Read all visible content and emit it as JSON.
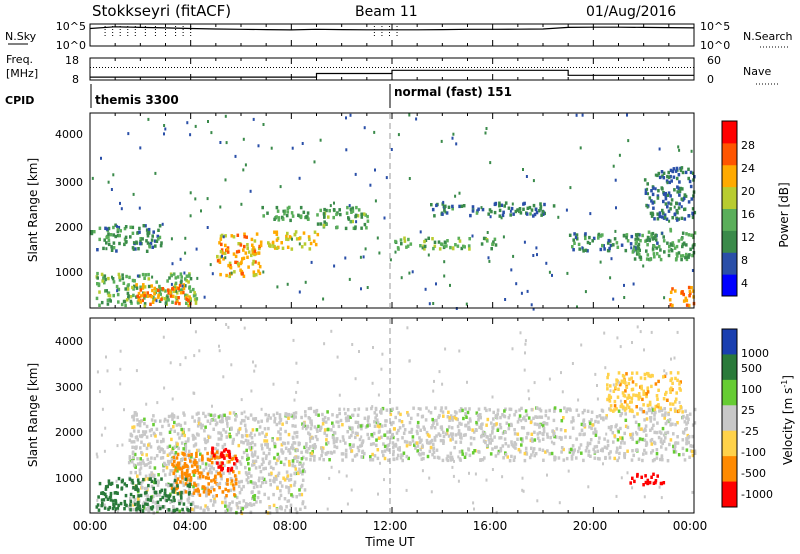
{
  "header": {
    "station": "Stokkseyri (fitACF)",
    "beam": "Beam 11",
    "date": "01/Aug/2016"
  },
  "summary_panels": {
    "nsky": {
      "label": "N.Sky",
      "ticks_left": [
        "10^5",
        "10^0"
      ],
      "ticks_right": [
        "10^5",
        "10^0"
      ],
      "right_label": "N.Search"
    },
    "freq": {
      "label_top": "Freq.",
      "label_bottom": "[MHz]",
      "ticks_left": [
        "18",
        "8"
      ],
      "ticks_right": [
        "60",
        "0"
      ],
      "right_label": "Nave"
    },
    "cpid": {
      "label": "CPID",
      "segments": [
        "themis 3300",
        "normal (fast) 151"
      ]
    }
  },
  "colorbars": {
    "power": {
      "label": "Power [dB]",
      "ticks": [
        "28",
        "24",
        "20",
        "16",
        "12",
        "8",
        "4"
      ]
    },
    "velocity": {
      "label_main": "Velocity [m s",
      "label_sup": "-1",
      "label_end": "]",
      "ticks": [
        "1000",
        "500",
        "100",
        "25",
        "-25",
        "-100",
        "-500",
        "-1000"
      ]
    }
  },
  "axes": {
    "ylabel": "Slant Range [km]",
    "xlabel": "Time UT",
    "yticks": [
      "4000",
      "3000",
      "2000",
      "1000"
    ],
    "xticks": [
      "00:00",
      "04:00",
      "08:00",
      "12:00",
      "16:00",
      "20:00",
      "00:00"
    ]
  },
  "chart_data": [
    {
      "type": "line",
      "panel": "N.Sky",
      "x_unit": "hours UT",
      "y_scale": "log",
      "ylim": [
        1,
        100000
      ],
      "series": [],
      "x": [
        0,
        1,
        2,
        3,
        4,
        5,
        6,
        7,
        8,
        9,
        10,
        11,
        12,
        13,
        14,
        15,
        16,
        17,
        18,
        19,
        20,
        21,
        22,
        23,
        24
      ],
      "values": [
        20000,
        60000,
        40000,
        30000,
        20000,
        15000,
        12000,
        10000,
        8000,
        12000,
        10000,
        9000,
        9000,
        9000,
        10000,
        12000,
        12000,
        13000,
        15000,
        40000,
        45000,
        45000,
        40000,
        35000,
        30000
      ]
    },
    {
      "type": "line",
      "panel": "Freq / Nave",
      "x_unit": "hours UT",
      "freq_mhz": {
        "x": [
          0,
          9,
          9,
          12,
          12,
          19,
          19,
          24
        ],
        "y": [
          8.5,
          8.5,
          10.5,
          10.5,
          12.3,
          12.3,
          9.5,
          9.5
        ]
      },
      "nave_dotted": {
        "x": [
          0,
          24
        ],
        "y": [
          35,
          35
        ]
      }
    },
    {
      "type": "heatmap",
      "panel": "Power",
      "xlabel": "Time UT",
      "ylabel": "Slant Range [km]",
      "xlim": [
        0,
        24
      ],
      "ylim": [
        180,
        4600
      ],
      "clim": [
        0,
        30
      ],
      "color_unit": "dB",
      "regions": [
        {
          "t0": 0.0,
          "t1": 2.8,
          "r0": 1500,
          "r1": 2100,
          "level": 10
        },
        {
          "t0": 0.2,
          "t1": 4.2,
          "r0": 250,
          "r1": 1000,
          "level": 14
        },
        {
          "t0": 1.8,
          "t1": 4.0,
          "r0": 300,
          "r1": 750,
          "level": 24
        },
        {
          "t0": 5.0,
          "t1": 6.8,
          "r0": 900,
          "r1": 1900,
          "level": 22
        },
        {
          "t0": 7.0,
          "t1": 9.0,
          "r0": 1550,
          "r1": 1950,
          "level": 20
        },
        {
          "t0": 6.8,
          "t1": 9.0,
          "r0": 2200,
          "r1": 2500,
          "level": 12
        },
        {
          "t0": 9.0,
          "t1": 11.0,
          "r0": 2000,
          "r1": 2500,
          "level": 13
        },
        {
          "t0": 12.0,
          "t1": 16.2,
          "r0": 1550,
          "r1": 1800,
          "level": 14
        },
        {
          "t0": 13.5,
          "t1": 18.5,
          "r0": 2300,
          "r1": 2600,
          "level": 9
        },
        {
          "t0": 19.0,
          "t1": 22.5,
          "r0": 1500,
          "r1": 1900,
          "level": 10
        },
        {
          "t0": 21.5,
          "t1": 24.0,
          "r0": 1300,
          "r1": 2000,
          "level": 12
        },
        {
          "t0": 22.0,
          "t1": 24.0,
          "r0": 2200,
          "r1": 3400,
          "level": 8
        },
        {
          "t0": 23.0,
          "t1": 24.0,
          "r0": 250,
          "r1": 700,
          "level": 24
        }
      ]
    },
    {
      "type": "heatmap",
      "panel": "Velocity",
      "xlabel": "Time UT",
      "ylabel": "Slant Range [km]",
      "xlim": [
        0,
        24
      ],
      "ylim": [
        180,
        4600
      ],
      "clim": [
        -1000,
        1000
      ],
      "color_unit": "m s^-1",
      "regions": [
        {
          "t0": 1.5,
          "t1": 8.5,
          "r0": 200,
          "r1": 2500,
          "level": 0
        },
        {
          "t0": 3.2,
          "t1": 5.8,
          "r0": 600,
          "r1": 1600,
          "level": -300
        },
        {
          "t0": 4.8,
          "t1": 5.8,
          "r0": 1100,
          "r1": 1700,
          "level": -600
        },
        {
          "t0": 0.2,
          "t1": 4.0,
          "r0": 250,
          "r1": 1000,
          "level": 150
        },
        {
          "t0": 8.5,
          "t1": 24.0,
          "r0": 1400,
          "r1": 2600,
          "level": 0
        },
        {
          "t0": 21.2,
          "t1": 22.8,
          "r0": 850,
          "r1": 1100,
          "level": -700
        },
        {
          "t0": 20.5,
          "t1": 23.5,
          "r0": 2500,
          "r1": 3400,
          "level": -80
        }
      ]
    }
  ]
}
